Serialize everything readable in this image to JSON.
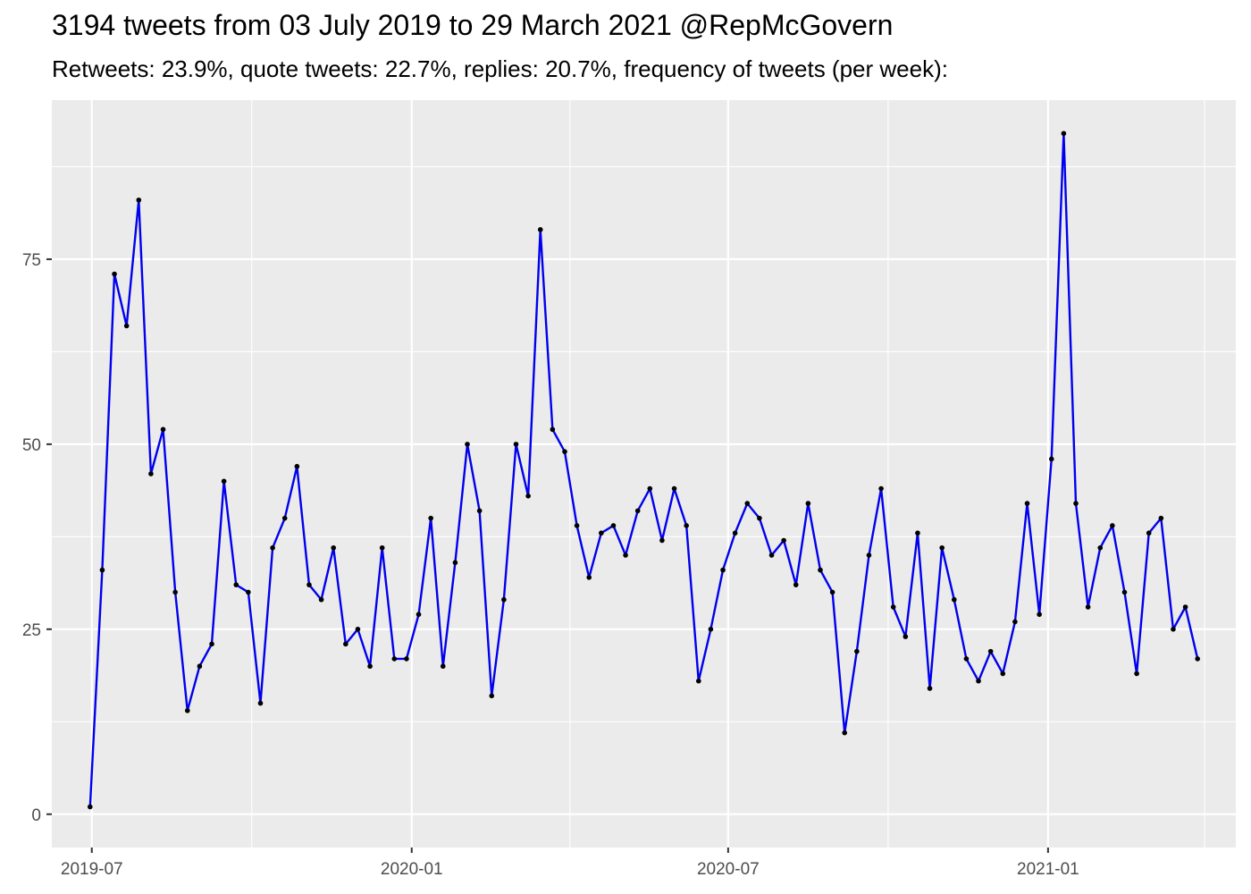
{
  "chart_data": {
    "type": "line",
    "title": "3194 tweets from 03 July 2019 to 29 March 2021 @RepMcGovern",
    "subtitle": "Retweets: 23.9%, quote tweets: 22.7%, replies: 20.7%, frequency of tweets (per week):",
    "xlabel": "",
    "ylabel": "",
    "x_start": "2019-06-30",
    "x_step_days": 7,
    "values": [
      1,
      33,
      73,
      66,
      83,
      46,
      52,
      30,
      14,
      20,
      23,
      45,
      31,
      30,
      15,
      36,
      40,
      47,
      31,
      29,
      36,
      23,
      25,
      20,
      36,
      21,
      21,
      27,
      40,
      20,
      34,
      50,
      41,
      16,
      29,
      50,
      43,
      79,
      52,
      49,
      39,
      32,
      38,
      39,
      35,
      41,
      44,
      37,
      44,
      39,
      18,
      25,
      33,
      38,
      42,
      40,
      35,
      37,
      31,
      42,
      33,
      30,
      11,
      22,
      35,
      44,
      28,
      24,
      38,
      17,
      36,
      29,
      21,
      18,
      22,
      19,
      26,
      42,
      27,
      48,
      92,
      42,
      28,
      36,
      39,
      30,
      19,
      38,
      40,
      25,
      28,
      21
    ],
    "xlim": [
      "2019-06-08",
      "2021-04-19"
    ],
    "ylim": [
      -4.5,
      96.5
    ],
    "x_ticks": [
      {
        "date": "2019-07-01",
        "label": "2019-07"
      },
      {
        "date": "2020-01-01",
        "label": "2020-01"
      },
      {
        "date": "2020-07-01",
        "label": "2020-07"
      },
      {
        "date": "2021-01-01",
        "label": "2021-01"
      }
    ],
    "x_minor_ticks": [
      "2019-10-01",
      "2020-04-01",
      "2020-10-01",
      "2021-04-01"
    ],
    "y_ticks": [
      0,
      25,
      50,
      75
    ],
    "y_minor_ticks": [
      12.5,
      37.5,
      62.5,
      87.5
    ],
    "grid": true,
    "legend": "none",
    "colors": {
      "line": "#0000ee",
      "point": "#000000",
      "panel": "#ebebeb",
      "grid": "#ffffff",
      "tick_text": "#4d4d4d"
    }
  }
}
